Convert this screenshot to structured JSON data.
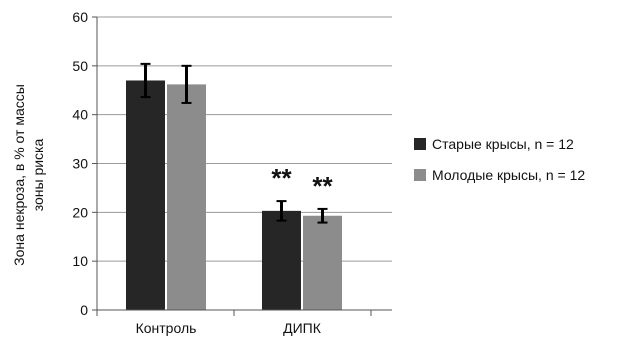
{
  "chart_data": {
    "type": "bar",
    "categories": [
      "Контроль",
      "ДИПК"
    ],
    "series": [
      {
        "name": "Старые крысы, n = 12",
        "color": "#262626",
        "values": [
          47,
          20.3
        ],
        "errors": [
          3.4,
          2.0
        ],
        "significance": [
          "",
          "**"
        ]
      },
      {
        "name": "Молодые крысы, n = 12",
        "color": "#8c8c8c",
        "values": [
          46.2,
          19.3
        ],
        "errors": [
          3.8,
          1.4
        ],
        "significance": [
          "",
          "**"
        ]
      }
    ],
    "title": "",
    "xlabel": "",
    "ylabel_lines": [
      "Зона некроза, в % от массы",
      "зоны риска"
    ],
    "ylim": [
      0,
      60
    ],
    "yticks": [
      0,
      10,
      20,
      30,
      40,
      50,
      60
    ],
    "grid": true,
    "legend_position": "right"
  }
}
